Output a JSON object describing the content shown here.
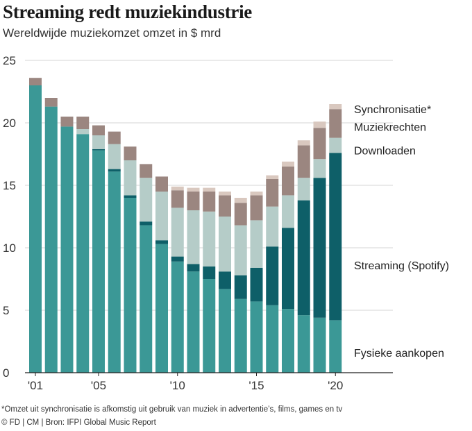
{
  "header": {
    "title": "Streaming redt muziekindustrie",
    "subtitle": "Wereldwijde muziekomzet omzet in $ mrd"
  },
  "footer": {
    "footnote": "*Omzet uit synchronisatie is afkomstig uit gebruik van muziek in advertentie’s, films, games en tv",
    "source": "© FD | CM | Bron: IFPI Global Music Report"
  },
  "colors": {
    "fysiek": "#3b9896",
    "streaming": "#0e5f68",
    "downloaden": "#b5ccc8",
    "muziekrechten": "#9b8680",
    "synchronisatie": "#d9c8bf",
    "grid": "#d4d4d4",
    "axis": "#222222"
  },
  "chart_data": {
    "type": "bar",
    "stacked": true,
    "ylim": [
      0,
      25
    ],
    "yticks": [
      0,
      5,
      10,
      15,
      20,
      25
    ],
    "grid": true,
    "legend_placement": "right (labels next to the last bar)",
    "x": [
      2001,
      2002,
      2003,
      2004,
      2005,
      2006,
      2007,
      2008,
      2009,
      2010,
      2011,
      2012,
      2013,
      2014,
      2015,
      2016,
      2017,
      2018,
      2019,
      2020
    ],
    "xtick_labels": [
      {
        "year": 2001,
        "label": "'01"
      },
      {
        "year": 2005,
        "label": "'05"
      },
      {
        "year": 2010,
        "label": "'10"
      },
      {
        "year": 2015,
        "label": "'15"
      },
      {
        "year": 2020,
        "label": "'20"
      }
    ],
    "series": [
      {
        "name": "Fysieke aankopen",
        "key": "fysiek",
        "values": [
          23.0,
          21.3,
          19.7,
          19.1,
          17.8,
          16.1,
          14.0,
          11.8,
          10.3,
          8.9,
          8.1,
          7.5,
          6.7,
          5.9,
          5.7,
          5.4,
          5.1,
          4.6,
          4.4,
          4.2
        ]
      },
      {
        "name": "Streaming (Spotify)",
        "key": "streaming",
        "values": [
          0,
          0,
          0,
          0,
          0.1,
          0.2,
          0.2,
          0.3,
          0.3,
          0.4,
          0.6,
          1.0,
          1.4,
          1.9,
          2.7,
          4.7,
          6.5,
          9.2,
          11.2,
          13.4
        ]
      },
      {
        "name": "Downloaden",
        "key": "downloaden",
        "values": [
          0,
          0,
          0,
          0.4,
          1.1,
          2.0,
          2.8,
          3.5,
          3.9,
          3.9,
          4.3,
          4.4,
          4.4,
          4.0,
          3.8,
          3.2,
          2.6,
          1.8,
          1.5,
          1.2
        ]
      },
      {
        "name": "Muziekrechten",
        "key": "muziekrechten",
        "values": [
          0.6,
          0.7,
          0.8,
          1.0,
          0.8,
          1.0,
          1.1,
          1.1,
          1.2,
          1.4,
          1.5,
          1.6,
          1.7,
          1.8,
          2.0,
          2.2,
          2.3,
          2.6,
          2.5,
          2.3
        ]
      },
      {
        "name": "Synchronisatie*",
        "key": "synchronisatie",
        "values": [
          0,
          0,
          0,
          0,
          0,
          0,
          0,
          0,
          0,
          0.3,
          0.3,
          0.3,
          0.3,
          0.4,
          0.3,
          0.3,
          0.4,
          0.4,
          0.5,
          0.4
        ]
      }
    ]
  }
}
